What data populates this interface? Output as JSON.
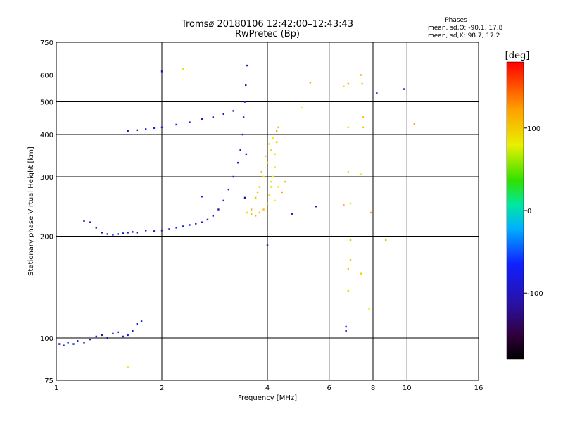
{
  "chart_data": {
    "type": "scatter",
    "title": "Tromsø 20180106 12:42:00–12:43:43",
    "subtitle": "RwPretec (Bp)",
    "xlabel": "Frequency [MHz]",
    "ylabel": "Stationary phase Virtual Height [km]",
    "x_scale": "log",
    "y_scale": "log",
    "xlim": [
      1,
      16
    ],
    "ylim": [
      75,
      750
    ],
    "x_ticks": [
      1,
      2,
      4,
      6,
      8,
      10,
      16
    ],
    "x_tick_labels": [
      "1",
      "2",
      "4",
      "6",
      "8",
      "10",
      "16"
    ],
    "y_ticks": [
      75,
      100,
      200,
      300,
      400,
      500,
      600,
      750
    ],
    "y_tick_labels": [
      "75",
      "100",
      "200",
      "300",
      "400",
      "500",
      "600",
      "750"
    ],
    "grid": true,
    "phase_box": {
      "title": "Phases",
      "line_o": "mean, sd,O: -90.1, 17.8",
      "line_x": "mean, sd,X:  98.7, 17.2"
    },
    "colorbar": {
      "label": "[deg]",
      "range": [
        -180,
        180
      ],
      "ticks": [
        100,
        0,
        -100
      ],
      "tick_labels": [
        "100",
        "0",
        "-100"
      ]
    },
    "series": [
      {
        "name": "O",
        "mean_phase": -90.1,
        "points": [
          [
            1.02,
            96
          ],
          [
            1.05,
            95
          ],
          [
            1.08,
            97
          ],
          [
            1.12,
            96
          ],
          [
            1.15,
            98
          ],
          [
            1.2,
            97
          ],
          [
            1.25,
            99
          ],
          [
            1.3,
            101
          ],
          [
            1.35,
            102
          ],
          [
            1.4,
            100
          ],
          [
            1.45,
            103
          ],
          [
            1.5,
            104
          ],
          [
            1.55,
            101
          ],
          [
            1.6,
            102
          ],
          [
            1.65,
            105
          ],
          [
            1.7,
            110
          ],
          [
            1.75,
            112
          ],
          [
            1.2,
            222
          ],
          [
            1.25,
            220
          ],
          [
            1.3,
            212
          ],
          [
            1.35,
            205
          ],
          [
            1.4,
            203
          ],
          [
            1.45,
            202
          ],
          [
            1.5,
            203
          ],
          [
            1.55,
            204
          ],
          [
            1.6,
            205
          ],
          [
            1.65,
            206
          ],
          [
            1.7,
            205
          ],
          [
            1.8,
            208
          ],
          [
            1.9,
            207
          ],
          [
            2.0,
            208
          ],
          [
            2.1,
            210
          ],
          [
            2.2,
            212
          ],
          [
            2.3,
            214
          ],
          [
            2.4,
            216
          ],
          [
            2.5,
            218
          ],
          [
            2.6,
            220
          ],
          [
            2.7,
            224
          ],
          [
            2.8,
            230
          ],
          [
            2.9,
            240
          ],
          [
            3.0,
            255
          ],
          [
            3.1,
            275
          ],
          [
            3.2,
            300
          ],
          [
            3.3,
            330
          ],
          [
            3.35,
            360
          ],
          [
            3.4,
            400
          ],
          [
            3.42,
            450
          ],
          [
            3.45,
            500
          ],
          [
            3.47,
            560
          ],
          [
            3.5,
            640
          ],
          [
            1.6,
            410
          ],
          [
            1.7,
            412
          ],
          [
            1.8,
            415
          ],
          [
            1.9,
            418
          ],
          [
            2.0,
            420
          ],
          [
            2.2,
            428
          ],
          [
            2.4,
            435
          ],
          [
            2.6,
            445
          ],
          [
            2.8,
            450
          ],
          [
            3.0,
            460
          ],
          [
            3.2,
            470
          ],
          [
            2.0,
            615
          ],
          [
            2.6,
            262
          ],
          [
            6.7,
            108
          ],
          [
            6.7,
            105
          ],
          [
            5.5,
            245
          ],
          [
            8.2,
            530
          ],
          [
            9.8,
            545
          ],
          [
            4.0,
            188
          ],
          [
            4.7,
            233
          ],
          [
            3.3,
            330
          ],
          [
            3.45,
            260
          ],
          [
            3.48,
            350
          ]
        ]
      },
      {
        "name": "X",
        "mean_phase": 98.7,
        "points": [
          [
            3.5,
            235
          ],
          [
            3.6,
            232
          ],
          [
            3.7,
            230
          ],
          [
            3.8,
            235
          ],
          [
            3.9,
            240
          ],
          [
            4.0,
            250
          ],
          [
            4.05,
            265
          ],
          [
            4.1,
            280
          ],
          [
            4.15,
            300
          ],
          [
            4.2,
            320
          ],
          [
            4.2,
            350
          ],
          [
            4.25,
            380
          ],
          [
            4.25,
            410
          ],
          [
            4.3,
            420
          ],
          [
            3.7,
            260
          ],
          [
            3.8,
            280
          ],
          [
            3.9,
            300
          ],
          [
            4.0,
            330
          ],
          [
            4.1,
            360
          ],
          [
            4.15,
            390
          ],
          [
            4.3,
            280
          ],
          [
            4.4,
            270
          ],
          [
            4.5,
            290
          ],
          [
            3.6,
            240
          ],
          [
            3.75,
            270
          ],
          [
            3.85,
            310
          ],
          [
            3.95,
            345
          ],
          [
            4.05,
            375
          ],
          [
            4.1,
            290
          ],
          [
            4.2,
            255
          ],
          [
            5.0,
            480
          ],
          [
            5.3,
            570
          ],
          [
            6.8,
            565
          ],
          [
            7.4,
            600
          ],
          [
            7.45,
            565
          ],
          [
            7.5,
            450
          ],
          [
            7.5,
            420
          ],
          [
            6.6,
            555
          ],
          [
            6.8,
            420
          ],
          [
            6.8,
            310
          ],
          [
            7.4,
            305
          ],
          [
            6.9,
            250
          ],
          [
            7.9,
            235
          ],
          [
            8.7,
            195
          ],
          [
            6.9,
            195
          ],
          [
            6.9,
            170
          ],
          [
            6.8,
            160
          ],
          [
            7.4,
            155
          ],
          [
            6.8,
            138
          ],
          [
            7.8,
            122
          ],
          [
            1.6,
            82
          ],
          [
            2.3,
            625
          ],
          [
            6.6,
            247
          ],
          [
            10.5,
            430
          ]
        ]
      }
    ]
  }
}
